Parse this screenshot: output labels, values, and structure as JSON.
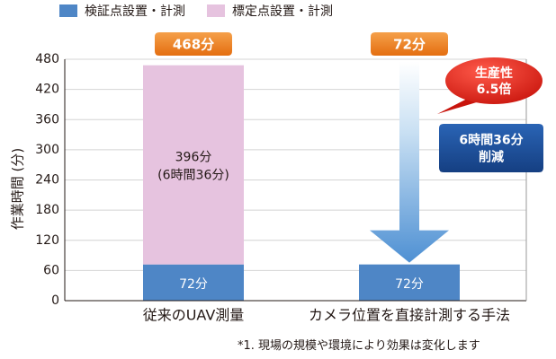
{
  "chart_data": {
    "type": "bar",
    "stacked": true,
    "categories": [
      "従来のUAV測量",
      "カメラ位置を直接計測する手法"
    ],
    "series": [
      {
        "name": "検証点設置・計測",
        "values": [
          72,
          72
        ],
        "color": "#4e86c6",
        "labels": [
          "72分",
          "72分"
        ]
      },
      {
        "name": "標定点設置・計測",
        "values": [
          396,
          0
        ],
        "color": "#e6c3df",
        "labels": [
          "396分\n(6時間36分)",
          ""
        ]
      }
    ],
    "totals": [
      "468分",
      "72分"
    ],
    "ylabel": "作業時間 (分)",
    "ylim": [
      0,
      480
    ],
    "yticks": [
      0,
      60,
      120,
      180,
      240,
      300,
      360,
      420,
      480
    ],
    "grid": true,
    "legend_position": "top",
    "annotations": {
      "reduction": "6時間36分\n削減",
      "productivity": "生産性\n6.5倍"
    },
    "total_label_color": "#ec7b1a",
    "reduction_color": "#1c4f9c",
    "productivity_color": "#e2231a"
  },
  "footnote": "*1. 現場の規模や環境により効果は変化します"
}
